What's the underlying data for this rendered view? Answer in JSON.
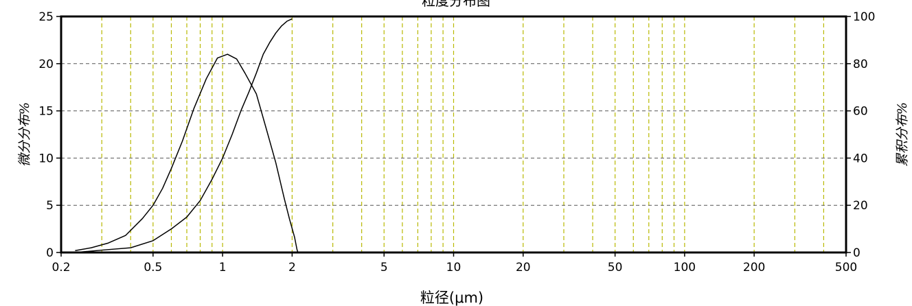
{
  "chart_data": {
    "type": "line",
    "title": "粒度分布图",
    "xlabel": "粒径(μm)",
    "ylabel_left": "微分分布%",
    "ylabel_right": "累积分布%",
    "x_scale": "log",
    "xlim": [
      0.2,
      500
    ],
    "ylim_left": [
      0,
      25
    ],
    "ylim_right": [
      0,
      100
    ],
    "x_ticks": [
      0.2,
      0.5,
      1,
      2,
      5,
      10,
      20,
      50,
      100,
      200,
      500
    ],
    "x_tick_labels": [
      "0.2",
      "0.5",
      "1",
      "2",
      "5",
      "10",
      "20",
      "50",
      "100",
      "200",
      "500"
    ],
    "y_ticks_left": [
      0,
      5,
      10,
      15,
      20,
      25
    ],
    "y_ticks_right": [
      0,
      20,
      40,
      60,
      80,
      100
    ],
    "grid": true,
    "grid_color": "#b8b800",
    "h_grid_color": "#555555",
    "line_color": "#000000",
    "series": [
      {
        "axis": "left",
        "x": [
          0.23,
          0.27,
          0.32,
          0.38,
          0.45,
          0.5,
          0.55,
          0.6,
          0.67,
          0.75,
          0.85,
          0.95,
          1.05,
          1.15,
          1.25,
          1.4,
          1.55,
          1.7,
          1.85,
          1.95,
          2.05,
          2.1,
          2.12
        ],
        "values": [
          0.2,
          0.5,
          1.0,
          1.8,
          3.6,
          5.0,
          6.8,
          8.9,
          11.8,
          15.2,
          18.4,
          20.6,
          21.0,
          20.5,
          19.0,
          16.8,
          13.0,
          9.5,
          5.7,
          3.5,
          1.6,
          0.3,
          0
        ]
      },
      {
        "axis": "right",
        "x": [
          0.23,
          0.3,
          0.4,
          0.5,
          0.6,
          0.7,
          0.8,
          0.9,
          1.0,
          1.1,
          1.2,
          1.3,
          1.4,
          1.5,
          1.6,
          1.7,
          1.8,
          1.9,
          2.0
        ],
        "values": [
          0,
          1,
          2,
          5,
          10,
          15,
          22,
          31,
          40,
          50,
          60,
          68,
          76,
          84,
          89,
          93,
          96,
          98,
          99
        ]
      }
    ]
  }
}
